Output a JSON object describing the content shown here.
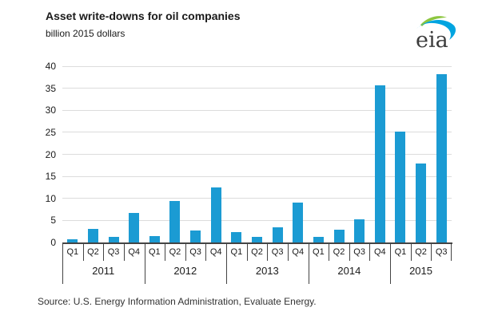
{
  "header": {
    "title": "Asset write-downs for oil companies",
    "subtitle": "billion 2015 dollars",
    "logo_text": "eia"
  },
  "source_line": "Source: U.S. Energy Information Administration, Evaluate Energy.",
  "colors": {
    "bar": "#1b9bd3",
    "gridline": "#dcdcdc",
    "axis": "#444444",
    "logo_green": "#8cc63f",
    "logo_blue": "#00a4e0"
  },
  "chart_data": {
    "type": "bar",
    "title": "Asset write-downs for oil companies",
    "ylabel": "billion 2015 dollars",
    "xlabel": "",
    "ylim": [
      0,
      40
    ],
    "ytick_step": 5,
    "yticks": [
      0,
      5,
      10,
      15,
      20,
      25,
      30,
      35,
      40
    ],
    "grid": true,
    "legend": false,
    "bar_color": "#1b9bd3",
    "groups": [
      {
        "year": "2011",
        "quarters": [
          "Q1",
          "Q2",
          "Q3",
          "Q4"
        ],
        "values": [
          0.8,
          3.0,
          1.2,
          6.7
        ]
      },
      {
        "year": "2012",
        "quarters": [
          "Q1",
          "Q2",
          "Q3",
          "Q4"
        ],
        "values": [
          1.4,
          9.4,
          2.8,
          12.5
        ]
      },
      {
        "year": "2013",
        "quarters": [
          "Q1",
          "Q2",
          "Q3",
          "Q4"
        ],
        "values": [
          2.4,
          1.3,
          3.4,
          9.0
        ]
      },
      {
        "year": "2014",
        "quarters": [
          "Q1",
          "Q2",
          "Q3",
          "Q4"
        ],
        "values": [
          1.2,
          2.9,
          5.3,
          35.7
        ]
      },
      {
        "year": "2015",
        "quarters": [
          "Q1",
          "Q2",
          "Q3"
        ],
        "values": [
          25.2,
          18.0,
          38.2
        ]
      }
    ]
  }
}
